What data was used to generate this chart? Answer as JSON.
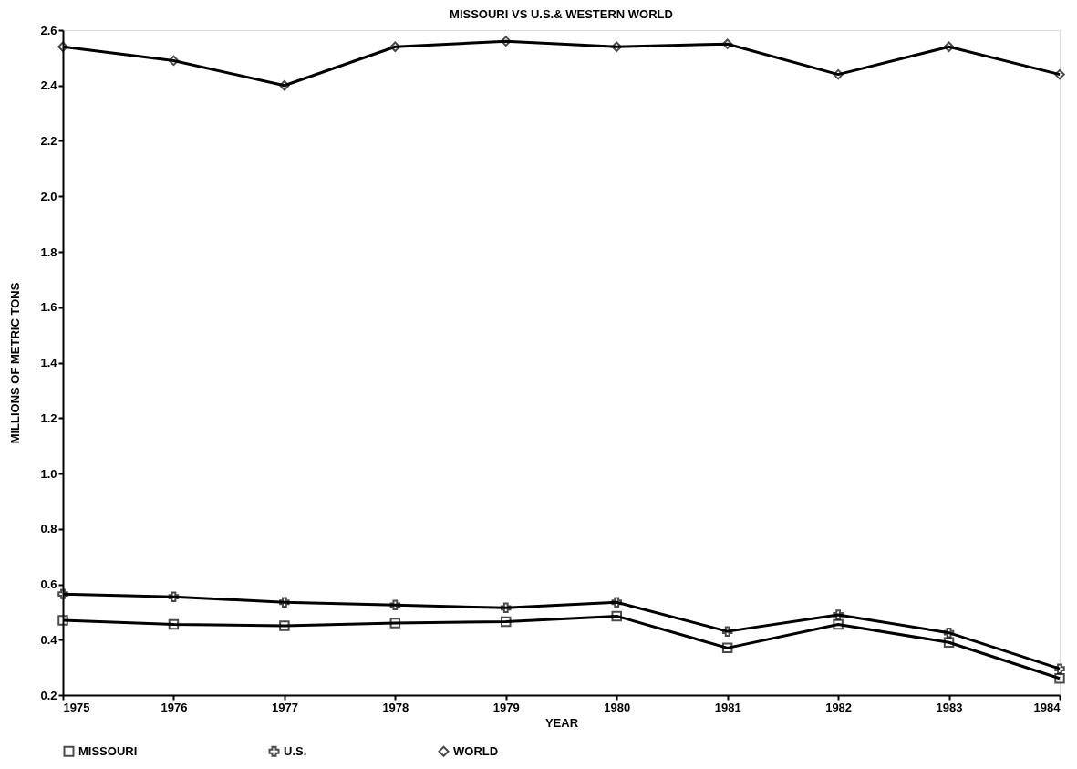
{
  "chart_data": {
    "type": "line",
    "title": "MISSOURI VS U.S.& WESTERN WORLD",
    "xlabel": "YEAR",
    "ylabel": "MILLIONS OF METRIC TONS",
    "x": [
      1975,
      1976,
      1977,
      1978,
      1979,
      1980,
      1981,
      1982,
      1983,
      1984
    ],
    "xlim": [
      1975,
      1984
    ],
    "xticks": [
      1975,
      1976,
      1977,
      1978,
      1979,
      1980,
      1981,
      1982,
      1983,
      1984
    ],
    "ylim": [
      0.2,
      2.6
    ],
    "yticks": [
      0.2,
      0.4,
      0.6,
      0.8,
      {
        "value": 1,
        "label": "1.0"
      },
      1.2,
      1.4,
      1.6,
      1.8,
      {
        "value": 2,
        "label": "2.0"
      },
      2.2,
      2.4,
      2.6
    ],
    "grid": false,
    "legend": "bottom",
    "line_style": "solid",
    "series": [
      {
        "name": "MISSOURI",
        "color": "#000000",
        "marker": "square",
        "values": [
          0.47,
          0.455,
          0.45,
          0.46,
          0.465,
          0.485,
          0.37,
          0.455,
          0.39,
          0.26
        ]
      },
      {
        "name": "U.S.",
        "color": "#000000",
        "marker": "cross",
        "values": [
          0.565,
          0.555,
          0.535,
          0.525,
          0.515,
          0.535,
          0.43,
          0.49,
          0.425,
          0.295
        ]
      },
      {
        "name": "WORLD",
        "color": "#000000",
        "marker": "diamond",
        "values": [
          2.54,
          2.49,
          2.4,
          2.54,
          2.56,
          2.54,
          2.55,
          2.44,
          2.54,
          2.44
        ]
      }
    ]
  }
}
